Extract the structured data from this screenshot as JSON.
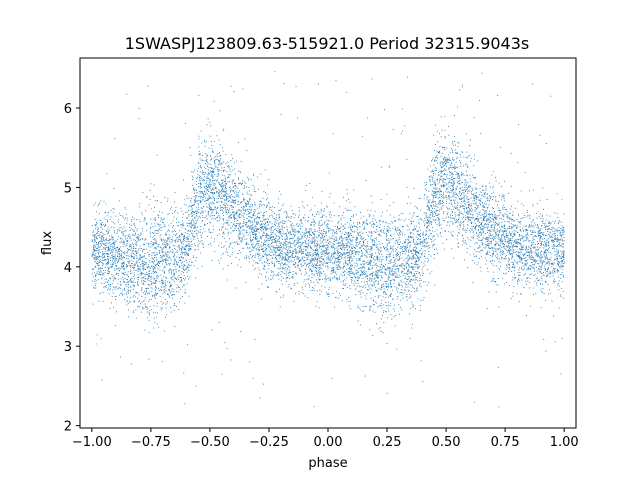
{
  "chart_data": {
    "type": "scatter",
    "title": "1SWASPJ123809.63-515921.0 Period 32315.9043s",
    "xlabel": "phase",
    "ylabel": "flux",
    "xlim": [
      -1.05,
      1.05
    ],
    "ylim": [
      1.97,
      6.63
    ],
    "xticks": [
      -1.0,
      -0.75,
      -0.5,
      -0.25,
      0.0,
      0.25,
      0.5,
      0.75,
      1.0
    ],
    "xtick_labels": [
      "−1.00",
      "−0.75",
      "−0.50",
      "−0.25",
      "0.00",
      "0.25",
      "0.50",
      "0.75",
      "1.00"
    ],
    "yticks": [
      2,
      3,
      4,
      5,
      6
    ],
    "ytick_labels": [
      "2",
      "3",
      "4",
      "5",
      "6"
    ],
    "grid": false,
    "marker_color": "#1f77b4",
    "series": [
      {
        "phase_profile": {
          "phase": [
            0.0,
            0.05,
            0.1,
            0.15,
            0.2,
            0.25,
            0.3,
            0.35,
            0.4,
            0.42,
            0.44,
            0.46,
            0.48,
            0.5,
            0.55,
            0.6,
            0.65,
            0.7,
            0.75,
            0.8,
            0.85,
            0.9,
            0.95,
            1.0
          ],
          "median_flux": [
            4.2,
            4.18,
            4.15,
            4.1,
            4.05,
            4.02,
            4.05,
            4.1,
            4.25,
            4.5,
            4.75,
            4.9,
            5.0,
            5.02,
            4.9,
            4.75,
            4.6,
            4.45,
            4.35,
            4.28,
            4.24,
            4.22,
            4.2,
            4.2
          ],
          "spread": [
            0.25,
            0.25,
            0.27,
            0.3,
            0.32,
            0.33,
            0.33,
            0.3,
            0.28,
            0.3,
            0.32,
            0.34,
            0.34,
            0.33,
            0.32,
            0.3,
            0.28,
            0.27,
            0.26,
            0.25,
            0.25,
            0.25,
            0.25,
            0.25
          ]
        },
        "point_count": 9000,
        "outlier_range": [
          2.2,
          6.5
        ]
      }
    ]
  }
}
